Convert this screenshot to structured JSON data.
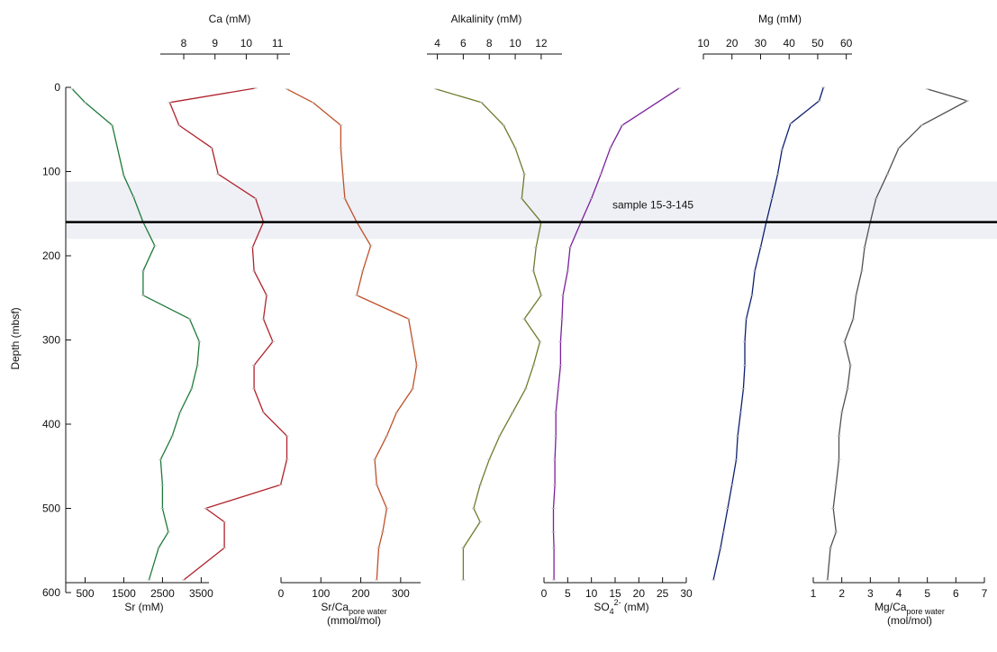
{
  "chart_data": {
    "type": "line",
    "orientation": "depth-profile",
    "depth_axis": {
      "label": "Depth (mbsf)",
      "range": [
        0,
        600
      ],
      "ticks": [
        0,
        100,
        200,
        300,
        400,
        500,
        600
      ],
      "tick_labels": [
        "0",
        "100",
        "200",
        "300",
        "400",
        "500",
        "600"
      ]
    },
    "band": {
      "from": 112,
      "to": 180,
      "color": "#eef0f5"
    },
    "marker_line": {
      "depth": 160,
      "label": "sample 15-3-145"
    },
    "panels": [
      {
        "id": "sr",
        "xlabel": "Sr (mM)",
        "axis_position": "bottom",
        "xlim": [
          0,
          3700
        ],
        "ticks": [
          500,
          1500,
          2500,
          3500
        ],
        "tick_labels": [
          "500",
          "1500",
          "2500",
          "3500"
        ],
        "color": "#1f7a3a",
        "depth": [
          2,
          18,
          45,
          105,
          130,
          160,
          188,
          218,
          247,
          275,
          302,
          330,
          358,
          386,
          414,
          442,
          472,
          500,
          528,
          547,
          585
        ],
        "values": [
          170,
          500,
          1200,
          1500,
          1750,
          2000,
          2300,
          2000,
          2000,
          3200,
          3450,
          3400,
          3250,
          2950,
          2750,
          2450,
          2500,
          2500,
          2650,
          2400,
          2150
        ]
      },
      {
        "id": "ca",
        "xlabel": "Ca (mM)",
        "axis_position": "top",
        "xlim": [
          7.25,
          11.4
        ],
        "ticks": [
          8,
          9,
          10,
          11
        ],
        "tick_labels": [
          "8",
          "9",
          "10",
          "11"
        ],
        "color": "#b0222b",
        "depth": [
          1,
          18,
          45,
          72,
          103,
          132,
          160,
          190,
          218,
          247,
          275,
          302,
          330,
          358,
          386,
          414,
          442,
          472,
          500,
          516,
          547,
          585
        ],
        "values": [
          10.3,
          7.55,
          7.85,
          8.9,
          9.1,
          10.3,
          10.55,
          10.2,
          10.25,
          10.65,
          10.55,
          10.85,
          10.25,
          10.25,
          10.55,
          11.3,
          11.3,
          11.1,
          8.7,
          9.3,
          9.3,
          8.0
        ]
      },
      {
        "id": "srca",
        "xlabel": "Sr/Ca",
        "xlabel_sub": "pore water",
        "xlabel_unit": "(mmol/mol)",
        "axis_position": "bottom",
        "xlim": [
          0,
          350
        ],
        "ticks": [
          0,
          100,
          200,
          300
        ],
        "tick_labels": [
          "0",
          "100",
          "200",
          "300"
        ],
        "color": "#c05028",
        "depth": [
          2,
          18,
          45,
          72,
          103,
          132,
          160,
          188,
          218,
          247,
          275,
          302,
          330,
          358,
          386,
          414,
          442,
          472,
          500,
          528,
          547,
          585
        ],
        "values": [
          15,
          80,
          150,
          150,
          155,
          160,
          190,
          225,
          205,
          190,
          320,
          330,
          340,
          330,
          290,
          265,
          235,
          240,
          265,
          255,
          245,
          240
        ]
      },
      {
        "id": "alk",
        "xlabel": "Alkalinity (mM)",
        "axis_position": "top",
        "xlim": [
          3.2,
          13.6
        ],
        "ticks": [
          4,
          6,
          8,
          10,
          12
        ],
        "tick_labels": [
          "4",
          "6",
          "8",
          "10",
          "12"
        ],
        "color": "#6f7a2a",
        "depth": [
          2,
          18,
          45,
          72,
          103,
          132,
          160,
          190,
          218,
          247,
          275,
          302,
          330,
          358,
          386,
          414,
          442,
          472,
          500,
          516,
          547,
          585
        ],
        "values": [
          3.9,
          7.4,
          9.1,
          10.0,
          10.7,
          10.5,
          12.0,
          11.6,
          11.4,
          12.0,
          10.7,
          11.9,
          11.4,
          10.8,
          9.8,
          8.8,
          8.0,
          7.3,
          6.8,
          7.3,
          6.0,
          6.0
        ]
      },
      {
        "id": "so4",
        "xlabel": "SO",
        "xlabel_sub": "4",
        "xlabel_sup": "2-",
        "xlabel_unit": "(mM)",
        "axis_position": "bottom",
        "xlim": [
          0,
          30
        ],
        "ticks": [
          0,
          5,
          10,
          15,
          20,
          25,
          30
        ],
        "tick_labels": [
          "0",
          "5",
          "10",
          "15",
          "20",
          "25",
          "30"
        ],
        "color": "#7a1f9a",
        "depth": [
          1,
          45,
          72,
          103,
          132,
          160,
          190,
          218,
          247,
          275,
          302,
          330,
          358,
          386,
          414,
          442,
          472,
          500,
          528,
          547,
          585
        ],
        "values": [
          28.5,
          16.5,
          14.0,
          12.0,
          10.0,
          7.8,
          5.5,
          5.0,
          4.0,
          3.8,
          3.5,
          3.5,
          3.0,
          2.5,
          2.5,
          2.3,
          2.3,
          2.0,
          2.0,
          2.1,
          2.1
        ]
      },
      {
        "id": "mg",
        "xlabel": "Mg (mM)",
        "axis_position": "top",
        "xlim": [
          10,
          62
        ],
        "ticks": [
          10,
          20,
          30,
          40,
          50,
          60
        ],
        "tick_labels": [
          "10",
          "20",
          "30",
          "40",
          "50",
          "60"
        ],
        "color": "#0d1f6e",
        "depth": [
          0,
          16,
          43,
          74,
          103,
          132,
          160,
          190,
          218,
          247,
          275,
          302,
          330,
          358,
          386,
          414,
          442,
          472,
          500,
          528,
          547,
          585
        ],
        "values": [
          52,
          50.5,
          40.5,
          37.5,
          36,
          34,
          32,
          30,
          28,
          27,
          25,
          24.5,
          24.5,
          24,
          23,
          22,
          21.5,
          20,
          18.5,
          17,
          16,
          13.5
        ]
      },
      {
        "id": "mgca",
        "xlabel": "Mg/Ca",
        "xlabel_sub": "pore water",
        "xlabel_unit": "(mol/mol)",
        "axis_position": "bottom",
        "xlim": [
          1,
          7
        ],
        "ticks": [
          1,
          2,
          3,
          4,
          5,
          6,
          7
        ],
        "tick_labels": [
          "1",
          "2",
          "3",
          "4",
          "5",
          "6",
          "7"
        ],
        "color": "#505050",
        "depth": [
          2,
          16,
          45,
          72,
          103,
          132,
          160,
          190,
          218,
          247,
          275,
          302,
          330,
          358,
          386,
          414,
          442,
          472,
          500,
          528,
          547,
          585
        ],
        "values": [
          5.0,
          6.4,
          4.8,
          4.0,
          3.6,
          3.2,
          3.0,
          2.8,
          2.7,
          2.5,
          2.4,
          2.1,
          2.3,
          2.2,
          2.0,
          1.9,
          1.9,
          1.8,
          1.7,
          1.8,
          1.6,
          1.5
        ]
      }
    ]
  }
}
